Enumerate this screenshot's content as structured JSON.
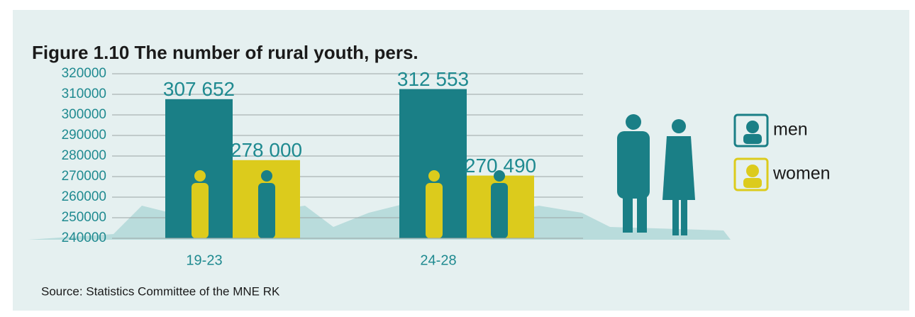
{
  "chart_data": {
    "type": "bar",
    "title": "Figure 1.10 The number of rural youth, pers.",
    "categories": [
      "19-23",
      "24-28"
    ],
    "series": [
      {
        "name": "men",
        "color": "#1a7f86",
        "values": [
          307652,
          312553
        ],
        "value_labels": [
          "307 652",
          "312 553"
        ]
      },
      {
        "name": "women",
        "color": "#dccb1c",
        "values": [
          278000,
          270490
        ],
        "value_labels": [
          "278 000",
          "270 490"
        ]
      }
    ],
    "ylim": [
      240000,
      320000
    ],
    "yticks": [
      240000,
      250000,
      260000,
      270000,
      280000,
      290000,
      300000,
      310000,
      320000
    ],
    "grid": true,
    "source": "Source: Statistics Committee of the MNE RK"
  }
}
